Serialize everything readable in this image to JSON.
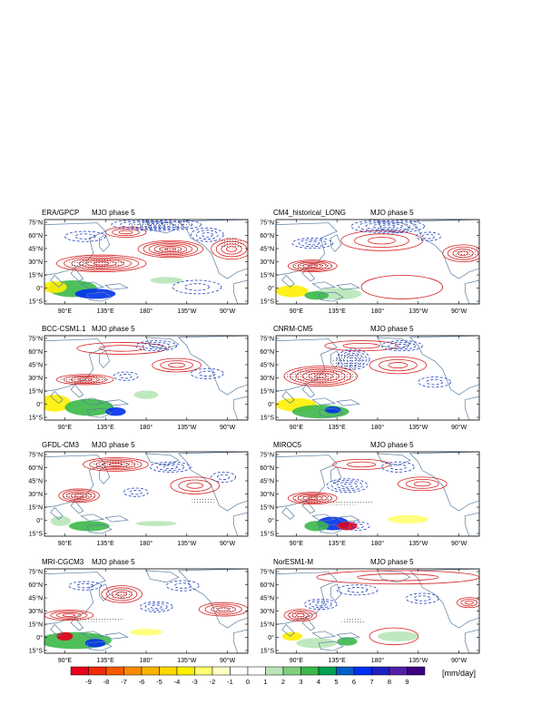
{
  "figure": {
    "panels": [
      {
        "model": "ERA/GPCP",
        "phase": "MJO phase 5"
      },
      {
        "model": "CM4_historical_LONG",
        "phase": "MJO phase 5"
      },
      {
        "model": "BCC-CSM1.1",
        "phase": "MJO phase 5"
      },
      {
        "model": "CNRM-CM5",
        "phase": "MJO phase 5"
      },
      {
        "model": "GFDL-CM3",
        "phase": "MJO phase 5"
      },
      {
        "model": "MIROC5",
        "phase": "MJO phase 5"
      },
      {
        "model": "MRI-CGCM3",
        "phase": "MJO phase 5"
      },
      {
        "model": "NorESM1-M",
        "phase": "MJO phase 5"
      }
    ],
    "lat_ticks": [
      "75°N",
      "60°N",
      "45°N",
      "30°N",
      "15°N",
      "0°",
      "15°S"
    ],
    "lon_ticks": [
      "90°E",
      "135°E",
      "180°",
      "135°W",
      "90°W"
    ],
    "colorbar": {
      "labels": [
        "-9",
        "-8",
        "-7",
        "-6",
        "-5",
        "-4",
        "-3",
        "-2",
        "-1",
        "0",
        "1",
        "2",
        "3",
        "4",
        "5",
        "6",
        "7",
        "8",
        "9"
      ],
      "colors": [
        "#e8001c",
        "#f02a0a",
        "#f55a00",
        "#fa8c00",
        "#fcb400",
        "#fcd800",
        "#fff000",
        "#ffff70",
        "#ffffc8",
        "#ffffff",
        "#ffffff",
        "#b8e6b8",
        "#7fcf7f",
        "#3cb84a",
        "#00a050",
        "#0060c8",
        "#0030f0",
        "#2020c0",
        "#5020a8",
        "#3c0080"
      ],
      "units": "[mm/day]"
    },
    "style": {
      "positive_contour": "#d62020",
      "negative_contour": "#2040c0",
      "coast": "#5a7fa0"
    }
  }
}
